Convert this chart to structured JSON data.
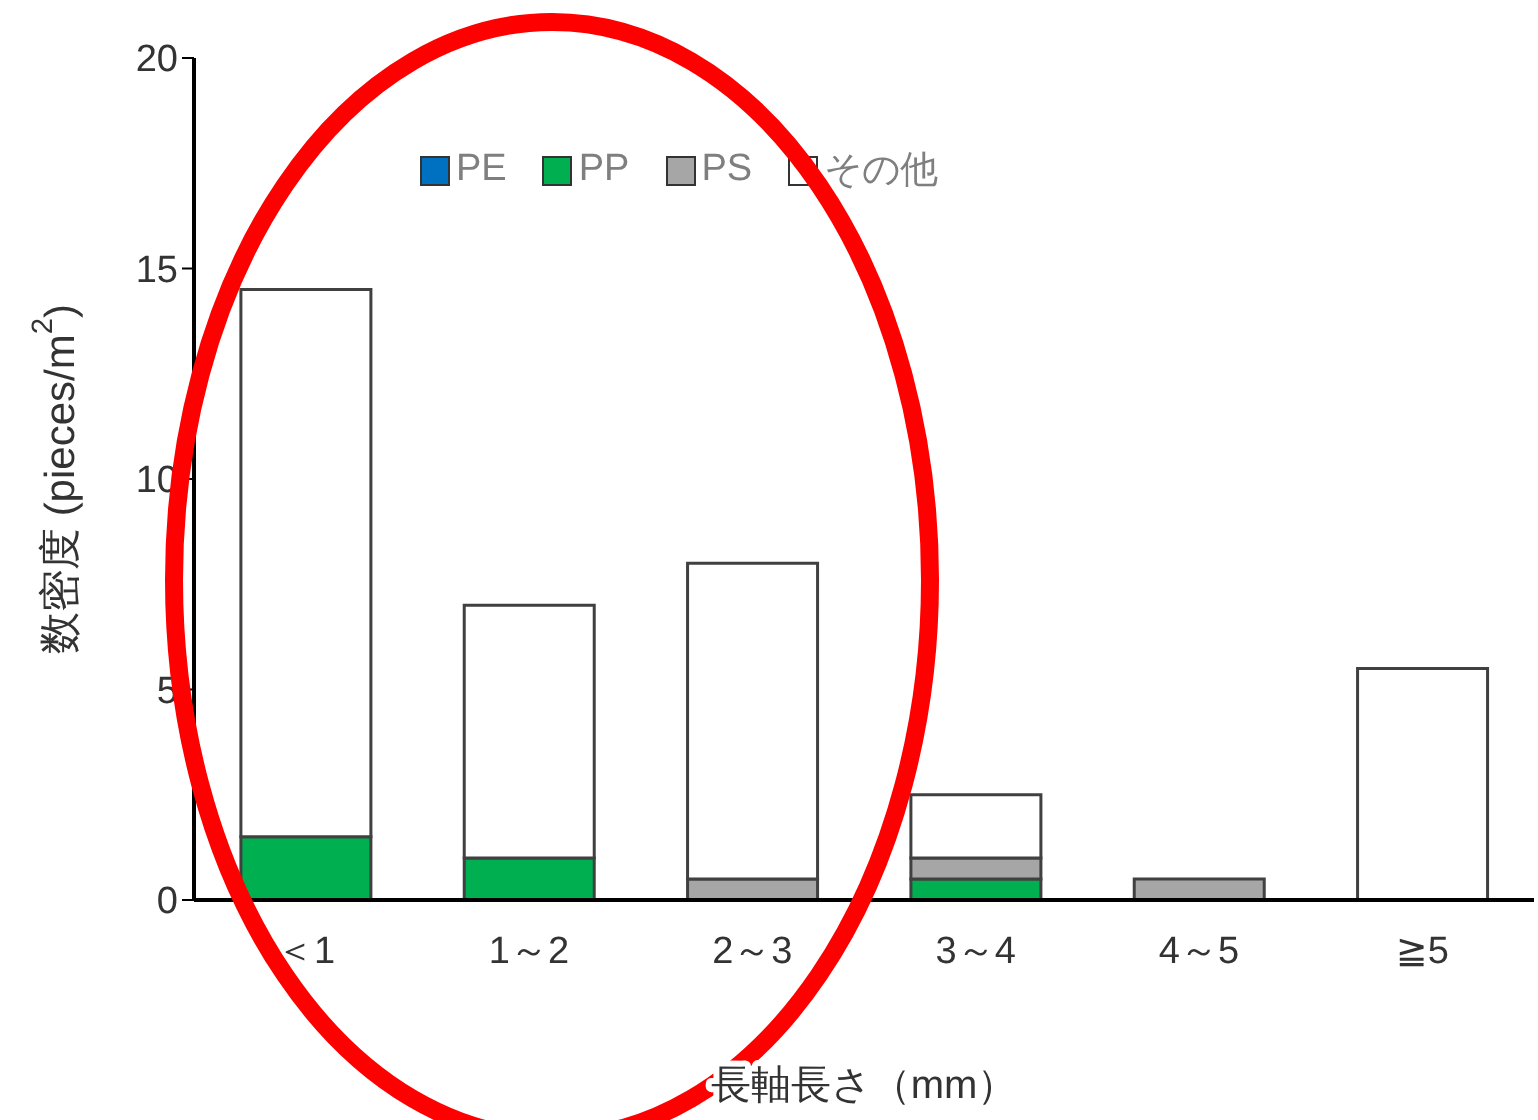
{
  "chart_data": {
    "type": "bar",
    "stacked": true,
    "xlabel": "長軸長さ（mm）",
    "ylabel": "数密度 (pieces/m$^{2}$)",
    "categories": [
      "＜1",
      "1～2",
      "2～3",
      "3～4",
      "4～5",
      "≧5"
    ],
    "series": [
      {
        "name": "PE",
        "color": "#0070c0",
        "values": [
          0,
          0,
          0,
          0,
          0,
          0
        ]
      },
      {
        "name": "PP",
        "color": "#00b050",
        "values": [
          1.5,
          1,
          0,
          0.5,
          0,
          0
        ]
      },
      {
        "name": "PS",
        "color": "#a6a6a6",
        "values": [
          0,
          0,
          0.5,
          0.5,
          0.5,
          0
        ]
      },
      {
        "name": "その他",
        "color": "#ffffff",
        "values": [
          13,
          6,
          7.5,
          1.5,
          0,
          5.5
        ]
      }
    ],
    "ylim": [
      0,
      20
    ],
    "yticks": [
      0,
      5,
      10,
      15,
      20
    ],
    "grid": false,
    "legend": "top"
  }
}
